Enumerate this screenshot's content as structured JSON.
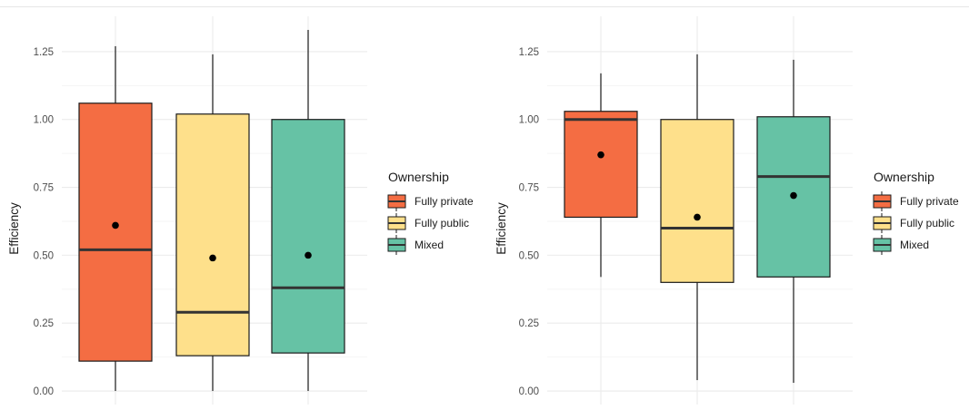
{
  "chart_data": [
    {
      "type": "box",
      "ylabel": "Efficiency",
      "ylim": [
        -0.05,
        1.38
      ],
      "y_ticks": [
        "0.00",
        "0.25",
        "0.50",
        "0.75",
        "1.00",
        "1.25"
      ],
      "grid": true,
      "legend_position": "right",
      "legend": {
        "title": "Ownership",
        "entries": [
          "Fully private",
          "Fully public",
          "Mixed"
        ]
      },
      "series": [
        {
          "name": "Fully private",
          "color": "#F46D43",
          "whisker_low": 0.0,
          "q1": 0.11,
          "median": 0.52,
          "q3": 1.06,
          "whisker_high": 1.27,
          "mean": 0.61
        },
        {
          "name": "Fully public",
          "color": "#FEE08B",
          "whisker_low": 0.0,
          "q1": 0.13,
          "median": 0.29,
          "q3": 1.02,
          "whisker_high": 1.24,
          "mean": 0.49
        },
        {
          "name": "Mixed",
          "color": "#66C2A5",
          "whisker_low": 0.0,
          "q1": 0.14,
          "median": 0.38,
          "q3": 1.0,
          "whisker_high": 1.33,
          "mean": 0.5
        }
      ]
    },
    {
      "type": "box",
      "ylabel": "Efficiency",
      "ylim": [
        -0.05,
        1.38
      ],
      "y_ticks": [
        "0.00",
        "0.25",
        "0.50",
        "0.75",
        "1.00",
        "1.25"
      ],
      "grid": true,
      "legend_position": "right",
      "legend": {
        "title": "Ownership",
        "entries": [
          "Fully private",
          "Fully public",
          "Mixed"
        ]
      },
      "series": [
        {
          "name": "Fully private",
          "color": "#F46D43",
          "whisker_low": 0.42,
          "q1": 0.64,
          "median": 1.0,
          "q3": 1.03,
          "whisker_high": 1.17,
          "mean": 0.87
        },
        {
          "name": "Fully public",
          "color": "#FEE08B",
          "whisker_low": 0.04,
          "q1": 0.4,
          "median": 0.6,
          "q3": 1.0,
          "whisker_high": 1.24,
          "mean": 0.64
        },
        {
          "name": "Mixed",
          "color": "#66C2A5",
          "whisker_low": 0.03,
          "q1": 0.42,
          "median": 0.79,
          "q3": 1.01,
          "whisker_high": 1.22,
          "mean": 0.72
        }
      ]
    }
  ]
}
